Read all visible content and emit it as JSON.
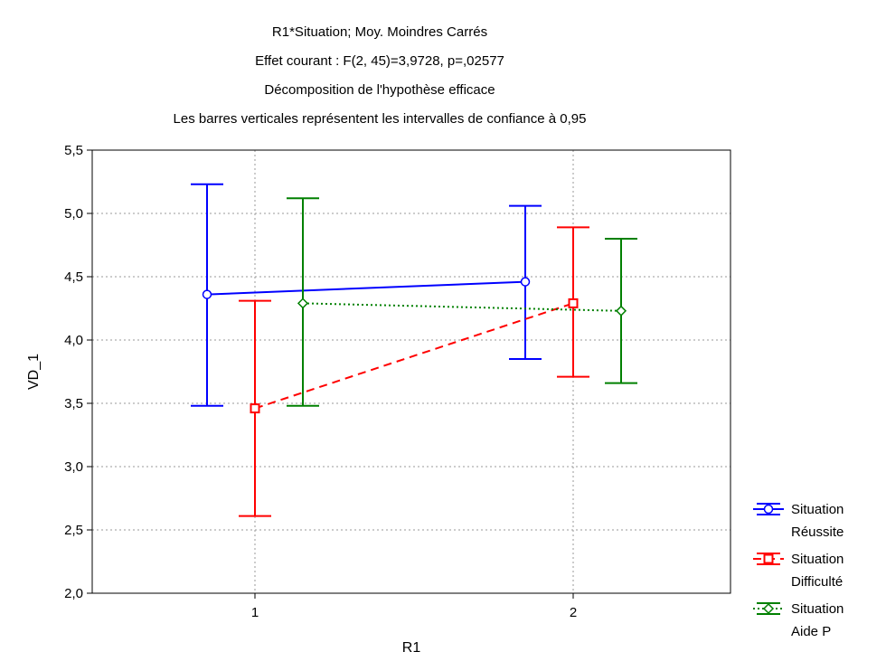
{
  "chart_data": {
    "type": "line",
    "title_lines": [
      "R1*Situation; Moy. Moindres Carrés",
      "Effet courant : F(2, 45)=3,9728, p=,02577",
      "Décomposition de l'hypothèse efficace",
      "Les barres verticales représentent les intervalles de confiance à 0,95"
    ],
    "xlabel": "R1",
    "ylabel": "VD_1",
    "categories": [
      "1",
      "2"
    ],
    "ylim": [
      2.0,
      5.5
    ],
    "yticks": [
      "2,0",
      "2,5",
      "3,0",
      "3,5",
      "4,0",
      "4,5",
      "5,0",
      "5,5"
    ],
    "ytick_values": [
      2.0,
      2.5,
      3.0,
      3.5,
      4.0,
      4.5,
      5.0,
      5.5
    ],
    "grid": "dotted",
    "legend_position": "bottom-right",
    "series": [
      {
        "name_lines": [
          "Situation",
          "Réussite"
        ],
        "color": "#0000ff",
        "line_style": "solid",
        "marker": "circle",
        "values": [
          4.36,
          4.46
        ],
        "ci_low": [
          3.48,
          3.85
        ],
        "ci_high": [
          5.23,
          5.06
        ]
      },
      {
        "name_lines": [
          "Situation",
          "Difficulté"
        ],
        "color": "#ff0000",
        "line_style": "dashed",
        "marker": "square",
        "values": [
          3.46,
          4.29
        ],
        "ci_low": [
          2.61,
          3.71
        ],
        "ci_high": [
          4.31,
          4.89
        ]
      },
      {
        "name_lines": [
          "Situation",
          "Aide P"
        ],
        "color": "#008000",
        "line_style": "dotted",
        "marker": "diamond",
        "values": [
          4.29,
          4.23
        ],
        "ci_low": [
          3.48,
          3.66
        ],
        "ci_high": [
          5.12,
          4.8
        ]
      }
    ]
  }
}
